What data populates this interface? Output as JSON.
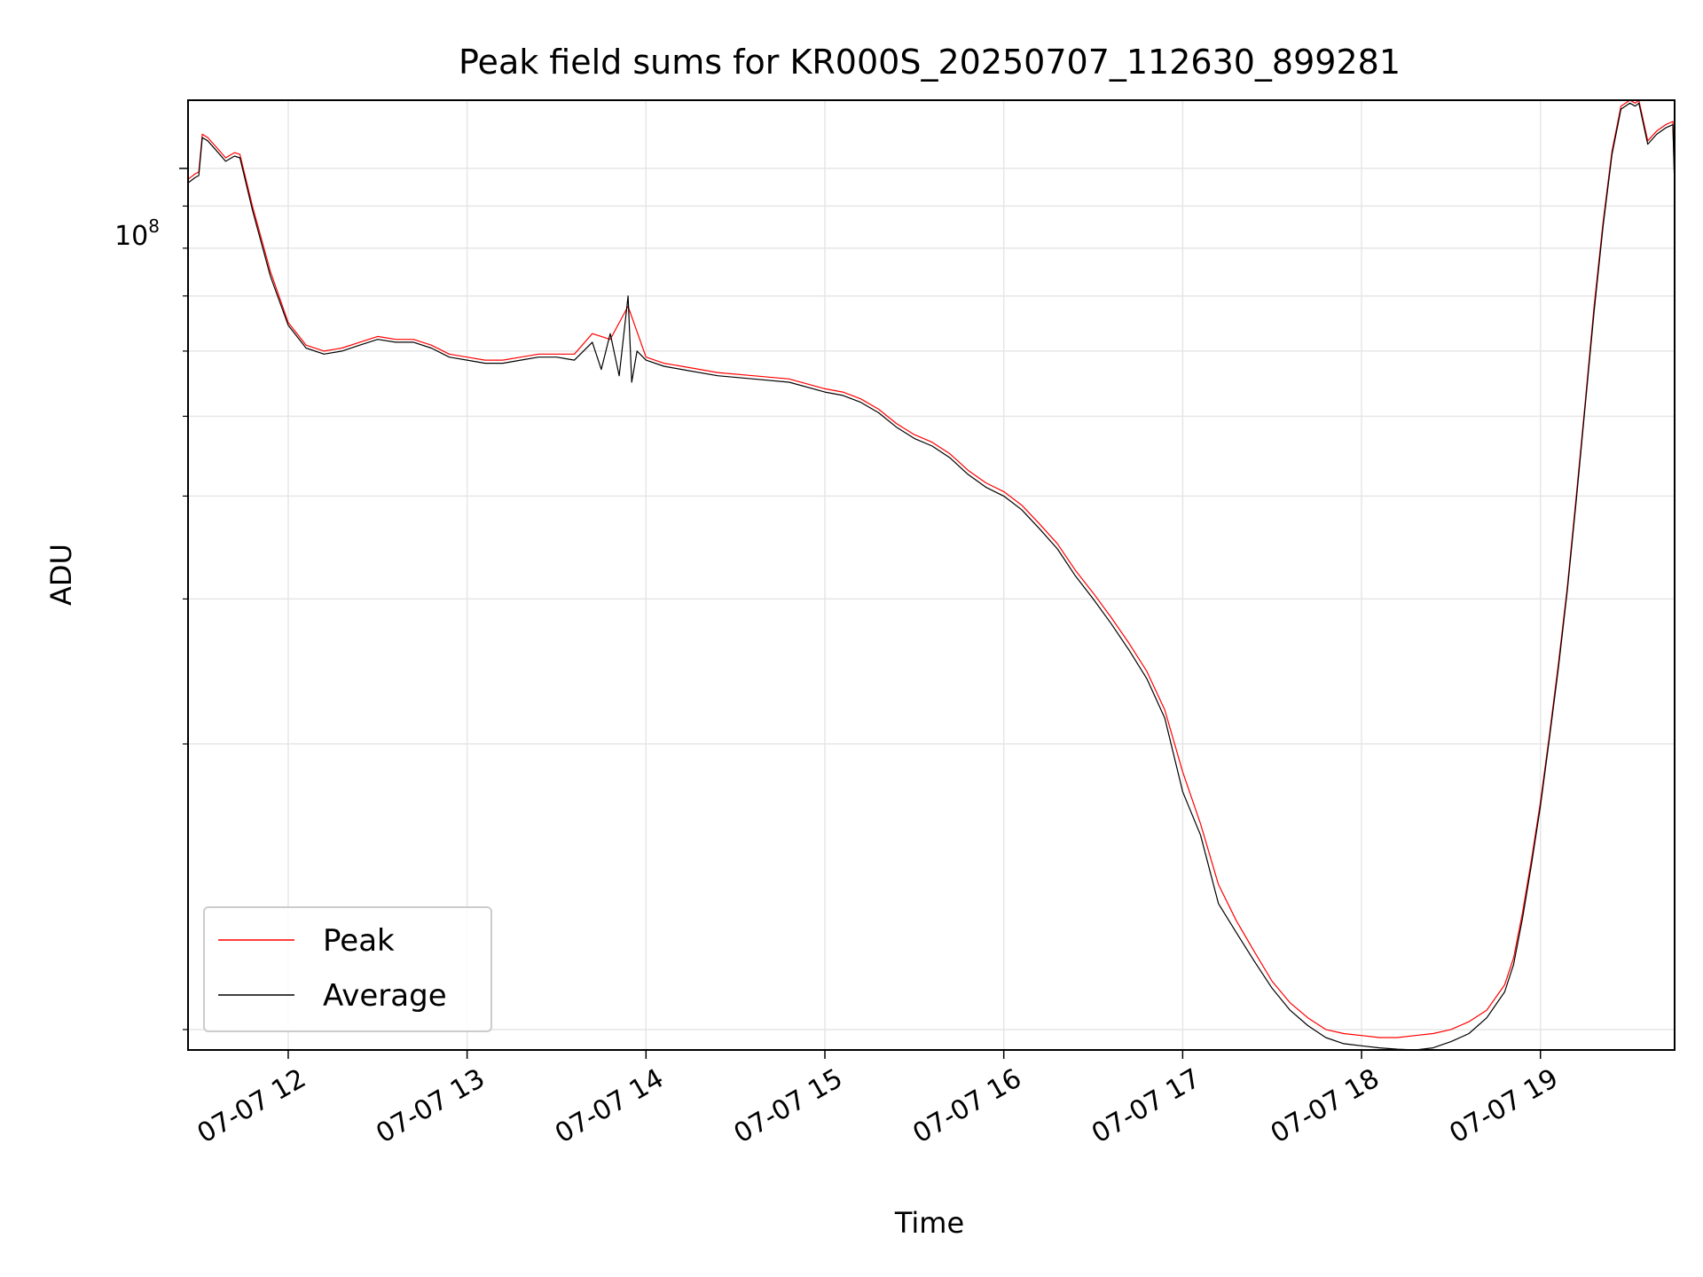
{
  "chart_data": {
    "type": "line",
    "title": "Peak field sums for KR000S_20250707_112630_899281",
    "xlabel": "Time",
    "ylabel": "ADU",
    "yscale": "log",
    "y_tick_labels": [
      {
        "value": 100000000,
        "base": "10",
        "exponent": "8"
      }
    ],
    "x_tick_labels": [
      "07-07 12",
      "07-07 13",
      "07-07 14",
      "07-07 15",
      "07-07 16",
      "07-07 17",
      "07-07 18",
      "07-07 19"
    ],
    "x_ticks_hours": [
      12,
      13,
      14,
      15,
      16,
      17,
      18,
      19
    ],
    "xlim_hours": [
      11.44,
      19.75
    ],
    "ylim": [
      8500000,
      121000000
    ],
    "grid": true,
    "legend_position": "lower-left",
    "series": [
      {
        "name": "Peak",
        "color": "#ff0000",
        "x_hours": [
          11.44,
          11.48,
          11.5,
          11.52,
          11.55,
          11.6,
          11.65,
          11.7,
          11.73,
          11.8,
          11.9,
          12.0,
          12.1,
          12.2,
          12.3,
          12.4,
          12.5,
          12.6,
          12.7,
          12.8,
          12.9,
          13.0,
          13.1,
          13.2,
          13.3,
          13.4,
          13.5,
          13.6,
          13.7,
          13.8,
          13.9,
          14.0,
          14.1,
          14.2,
          14.4,
          14.6,
          14.8,
          15.0,
          15.1,
          15.2,
          15.3,
          15.4,
          15.5,
          15.6,
          15.7,
          15.8,
          15.9,
          16.0,
          16.1,
          16.2,
          16.3,
          16.4,
          16.5,
          16.6,
          16.7,
          16.8,
          16.9,
          17.0,
          17.1,
          17.2,
          17.3,
          17.4,
          17.5,
          17.6,
          17.7,
          17.8,
          17.9,
          18.0,
          18.1,
          18.2,
          18.3,
          18.4,
          18.5,
          18.6,
          18.7,
          18.8,
          18.85,
          18.9,
          18.95,
          19.0,
          19.05,
          19.1,
          19.15,
          19.2,
          19.25,
          19.3,
          19.35,
          19.4,
          19.45,
          19.5,
          19.53,
          19.55,
          19.6,
          19.65,
          19.7,
          19.74,
          19.75
        ],
        "values": [
          97000000,
          98500000,
          99000000,
          110000000,
          109000000,
          106000000,
          103000000,
          104500000,
          104000000,
          90000000,
          75000000,
          65000000,
          61000000,
          60000000,
          60500000,
          61500000,
          62500000,
          62000000,
          62000000,
          61000000,
          59500000,
          59000000,
          58500000,
          58500000,
          59000000,
          59500000,
          59500000,
          59500000,
          63000000,
          62000000,
          68000000,
          59000000,
          58000000,
          57500000,
          56500000,
          56000000,
          55500000,
          54000000,
          53500000,
          52500000,
          51000000,
          49000000,
          47500000,
          46500000,
          45000000,
          43000000,
          41500000,
          40500000,
          39000000,
          37000000,
          35000000,
          32500000,
          30500000,
          28500000,
          26500000,
          24500000,
          22000000,
          18500000,
          16000000,
          13500000,
          12200000,
          11200000,
          10300000,
          9700000,
          9300000,
          9000000,
          8900000,
          8850000,
          8800000,
          8800000,
          8850000,
          8900000,
          9000000,
          9200000,
          9500000,
          10200000,
          11000000,
          12500000,
          14500000,
          17000000,
          20500000,
          25000000,
          31000000,
          40000000,
          52000000,
          68000000,
          86000000,
          105000000,
          119000000,
          121000000,
          120000000,
          121000000,
          108000000,
          111000000,
          113000000,
          114000000,
          96000000
        ],
        "line_width": 1.2
      },
      {
        "name": "Average",
        "color": "#000000",
        "x_hours": [
          11.44,
          11.48,
          11.5,
          11.52,
          11.55,
          11.6,
          11.65,
          11.7,
          11.73,
          11.8,
          11.9,
          12.0,
          12.1,
          12.2,
          12.3,
          12.4,
          12.5,
          12.6,
          12.7,
          12.8,
          12.9,
          13.0,
          13.1,
          13.2,
          13.3,
          13.4,
          13.5,
          13.6,
          13.7,
          13.75,
          13.8,
          13.85,
          13.9,
          13.92,
          13.95,
          14.0,
          14.1,
          14.2,
          14.4,
          14.6,
          14.8,
          15.0,
          15.1,
          15.2,
          15.3,
          15.4,
          15.5,
          15.6,
          15.7,
          15.8,
          15.9,
          16.0,
          16.1,
          16.2,
          16.3,
          16.4,
          16.5,
          16.6,
          16.7,
          16.8,
          16.9,
          17.0,
          17.1,
          17.2,
          17.3,
          17.4,
          17.5,
          17.6,
          17.7,
          17.8,
          17.9,
          18.0,
          18.1,
          18.2,
          18.3,
          18.4,
          18.5,
          18.6,
          18.7,
          18.8,
          18.85,
          18.9,
          18.95,
          19.0,
          19.05,
          19.1,
          19.15,
          19.2,
          19.25,
          19.3,
          19.35,
          19.4,
          19.45,
          19.5,
          19.53,
          19.55,
          19.6,
          19.65,
          19.7,
          19.74,
          19.75
        ],
        "values": [
          96000000,
          97500000,
          98000000,
          109000000,
          108000000,
          105000000,
          102000000,
          103500000,
          103000000,
          89000000,
          74000000,
          64500000,
          60500000,
          59500000,
          60000000,
          61000000,
          62000000,
          61500000,
          61500000,
          60500000,
          59000000,
          58500000,
          58000000,
          58000000,
          58500000,
          59000000,
          59000000,
          58500000,
          61500000,
          57000000,
          63000000,
          56000000,
          70000000,
          55000000,
          60000000,
          58500000,
          57500000,
          57000000,
          56000000,
          55500000,
          55000000,
          53500000,
          53000000,
          52000000,
          50500000,
          48500000,
          47000000,
          46000000,
          44500000,
          42500000,
          41000000,
          40000000,
          38500000,
          36500000,
          34500000,
          32000000,
          30000000,
          28000000,
          26000000,
          24000000,
          21500000,
          17500000,
          15500000,
          12800000,
          11800000,
          10900000,
          10100000,
          9500000,
          9100000,
          8800000,
          8650000,
          8600000,
          8550000,
          8520000,
          8500000,
          8550000,
          8700000,
          8900000,
          9300000,
          10000000,
          10800000,
          12300000,
          14300000,
          16800000,
          20300000,
          24700000,
          30700000,
          39500000,
          51500000,
          67000000,
          85000000,
          104000000,
          118000000,
          120000000,
          119000000,
          120000000,
          107000000,
          110000000,
          112000000,
          113000000,
          95000000
        ],
        "line_width": 1.2
      }
    ]
  }
}
